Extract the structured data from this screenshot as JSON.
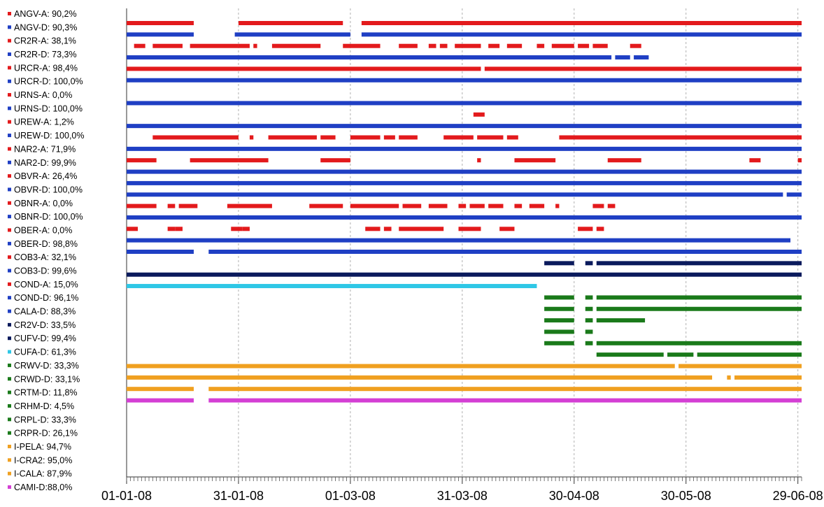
{
  "chart_data": {
    "type": "timeline",
    "x_range": [
      "2008-01-01",
      "2008-06-30"
    ],
    "x_ticks": [
      "01-01-08",
      "31-01-08",
      "01-03-08",
      "31-03-08",
      "30-04-08",
      "30-05-08",
      "29-06-08"
    ],
    "grid": "vertical dashed",
    "legend_position": "left",
    "legend": [
      {
        "label": "ANGV-A: 90,2%",
        "color": "#e31a1c"
      },
      {
        "label": "ANGV-D: 90,3%",
        "color": "#1f3fc4"
      },
      {
        "label": "CR2R-A: 38,1%",
        "color": "#e31a1c"
      },
      {
        "label": "CR2R-D: 73,3%",
        "color": "#1f3fc4"
      },
      {
        "label": "URCR-A: 98,4%",
        "color": "#e31a1c"
      },
      {
        "label": "URCR-D: 100,0%",
        "color": "#1f3fc4"
      },
      {
        "label": "URNS-A: 0,0%",
        "color": "#e31a1c"
      },
      {
        "label": "URNS-D: 100,0%",
        "color": "#1f3fc4"
      },
      {
        "label": "UREW-A: 1,2%",
        "color": "#e31a1c"
      },
      {
        "label": "UREW-D: 100,0%",
        "color": "#1f3fc4"
      },
      {
        "label": "NAR2-A: 71,9%",
        "color": "#e31a1c"
      },
      {
        "label": "NAR2-D: 99,9%",
        "color": "#1f3fc4"
      },
      {
        "label": "OBVR-A: 26,4%",
        "color": "#e31a1c"
      },
      {
        "label": "OBVR-D: 100,0%",
        "color": "#1f3fc4"
      },
      {
        "label": "OBNR-A: 0,0%",
        "color": "#e31a1c"
      },
      {
        "label": "OBNR-D: 100,0%",
        "color": "#1f3fc4"
      },
      {
        "label": "OBER-A: 0,0%",
        "color": "#e31a1c"
      },
      {
        "label": "OBER-D: 98,8%",
        "color": "#1f3fc4"
      },
      {
        "label": "COB3-A: 32,1%",
        "color": "#e31a1c"
      },
      {
        "label": "COB3-D: 99,6%",
        "color": "#1f3fc4"
      },
      {
        "label": "COND-A: 15,0%",
        "color": "#e31a1c"
      },
      {
        "label": "COND-D: 96,1%",
        "color": "#1f3fc4"
      },
      {
        "label": "CALA-D: 88,3%",
        "color": "#1f3fc4"
      },
      {
        "label": "CR2V-D: 33,5%",
        "color": "#0a1a5c"
      },
      {
        "label": "CUFV-D: 99,4%",
        "color": "#0a1a5c"
      },
      {
        "label": "CUFA-D: 61,3%",
        "color": "#2ec7e6"
      },
      {
        "label": "CRWV-D: 33,3%",
        "color": "#1a7a1a"
      },
      {
        "label": "CRWD-D: 33,1%",
        "color": "#1a7a1a"
      },
      {
        "label": "CRTM-D: 11,8%",
        "color": "#1a7a1a"
      },
      {
        "label": "CRHM-D: 4,5%",
        "color": "#1a7a1a"
      },
      {
        "label": "CRPL-D: 33,3%",
        "color": "#1a7a1a"
      },
      {
        "label": "CRPR-D: 26,1%",
        "color": "#1a7a1a"
      },
      {
        "label": "I-PELA: 94,7%",
        "color": "#f0a020"
      },
      {
        "label": "I-CRA2: 95,0%",
        "color": "#f0a020"
      },
      {
        "label": "I-CALA: 87,9%",
        "color": "#f0a020"
      },
      {
        "label": "CAMI-D:88,0%",
        "color": "#d43fd4"
      }
    ],
    "series": [
      {
        "color": "#e31a1c",
        "segments": [
          [
            "2008-01-01",
            "2008-01-19"
          ],
          [
            "2008-01-31",
            "2008-02-28"
          ],
          [
            "2008-03-04",
            "2008-06-30"
          ]
        ]
      },
      {
        "color": "#1f3fc4",
        "segments": [
          [
            "2008-01-01",
            "2008-01-19"
          ],
          [
            "2008-01-30",
            "2008-03-01"
          ],
          [
            "2008-03-04",
            "2008-06-30"
          ]
        ]
      },
      {
        "color": "#e31a1c",
        "segments": [
          [
            "2008-01-03",
            "2008-01-06"
          ],
          [
            "2008-01-08",
            "2008-01-16"
          ],
          [
            "2008-01-18",
            "2008-01-31"
          ],
          [
            "2008-01-31",
            "2008-02-03"
          ],
          [
            "2008-02-04",
            "2008-02-05"
          ],
          [
            "2008-02-09",
            "2008-02-22"
          ],
          [
            "2008-02-28",
            "2008-03-09"
          ],
          [
            "2008-03-14",
            "2008-03-19"
          ],
          [
            "2008-03-22",
            "2008-03-24"
          ],
          [
            "2008-03-25",
            "2008-03-27"
          ],
          [
            "2008-03-29",
            "2008-04-05"
          ],
          [
            "2008-04-07",
            "2008-04-10"
          ],
          [
            "2008-04-12",
            "2008-04-16"
          ],
          [
            "2008-04-20",
            "2008-04-22"
          ],
          [
            "2008-04-24",
            "2008-04-30"
          ],
          [
            "2008-05-01",
            "2008-05-04"
          ],
          [
            "2008-05-05",
            "2008-05-09"
          ],
          [
            "2008-05-15",
            "2008-05-18"
          ]
        ]
      },
      {
        "color": "#1f3fc4",
        "segments": [
          [
            "2008-01-01",
            "2008-05-10"
          ],
          [
            "2008-05-11",
            "2008-05-15"
          ],
          [
            "2008-05-16",
            "2008-05-20"
          ]
        ]
      },
      {
        "color": "#e31a1c",
        "segments": [
          [
            "2008-01-01",
            "2008-04-05"
          ],
          [
            "2008-04-06",
            "2008-06-30"
          ]
        ]
      },
      {
        "color": "#1f3fc4",
        "segments": [
          [
            "2008-01-01",
            "2008-06-30"
          ]
        ]
      },
      {
        "color": "#e31a1c",
        "segments": []
      },
      {
        "color": "#1f3fc4",
        "segments": [
          [
            "2008-01-01",
            "2008-06-30"
          ]
        ]
      },
      {
        "color": "#e31a1c",
        "segments": [
          [
            "2008-04-03",
            "2008-04-06"
          ]
        ]
      },
      {
        "color": "#1f3fc4",
        "segments": [
          [
            "2008-01-01",
            "2008-06-30"
          ]
        ]
      },
      {
        "color": "#e31a1c",
        "segments": [
          [
            "2008-01-08",
            "2008-01-31"
          ],
          [
            "2008-02-03",
            "2008-02-04"
          ],
          [
            "2008-02-08",
            "2008-02-21"
          ],
          [
            "2008-02-22",
            "2008-02-26"
          ],
          [
            "2008-03-01",
            "2008-03-09"
          ],
          [
            "2008-03-10",
            "2008-03-13"
          ],
          [
            "2008-03-14",
            "2008-03-19"
          ],
          [
            "2008-03-26",
            "2008-04-03"
          ],
          [
            "2008-04-04",
            "2008-04-11"
          ],
          [
            "2008-04-12",
            "2008-04-15"
          ],
          [
            "2008-04-26",
            "2008-06-30"
          ]
        ]
      },
      {
        "color": "#1f3fc4",
        "segments": [
          [
            "2008-01-01",
            "2008-06-30"
          ]
        ]
      },
      {
        "color": "#e31a1c",
        "segments": [
          [
            "2008-01-01",
            "2008-01-09"
          ],
          [
            "2008-01-18",
            "2008-01-31"
          ],
          [
            "2008-01-31",
            "2008-02-08"
          ],
          [
            "2008-02-22",
            "2008-03-01"
          ],
          [
            "2008-04-04",
            "2008-04-05"
          ],
          [
            "2008-04-14",
            "2008-04-25"
          ],
          [
            "2008-05-09",
            "2008-05-18"
          ],
          [
            "2008-06-16",
            "2008-06-19"
          ],
          [
            "2008-06-29",
            "2008-06-30"
          ]
        ]
      },
      {
        "color": "#1f3fc4",
        "segments": [
          [
            "2008-01-01",
            "2008-06-30"
          ]
        ]
      },
      {
        "color": "#1f3fc4",
        "segments": [
          [
            "2008-01-01",
            "2008-06-30"
          ]
        ]
      },
      {
        "color": "#1f3fc4",
        "segments": [
          [
            "2008-01-01",
            "2008-06-25"
          ],
          [
            "2008-06-26",
            "2008-06-30"
          ]
        ]
      },
      {
        "color": "#e31a1c",
        "segments": [
          [
            "2008-01-01",
            "2008-01-09"
          ],
          [
            "2008-01-12",
            "2008-01-14"
          ],
          [
            "2008-01-15",
            "2008-01-20"
          ],
          [
            "2008-01-28",
            "2008-02-09"
          ],
          [
            "2008-02-19",
            "2008-02-28"
          ],
          [
            "2008-03-01",
            "2008-03-14"
          ],
          [
            "2008-03-15",
            "2008-03-20"
          ],
          [
            "2008-03-22",
            "2008-03-27"
          ],
          [
            "2008-03-30",
            "2008-04-01"
          ],
          [
            "2008-04-02",
            "2008-04-06"
          ],
          [
            "2008-04-07",
            "2008-04-11"
          ],
          [
            "2008-04-14",
            "2008-04-16"
          ],
          [
            "2008-04-18",
            "2008-04-22"
          ],
          [
            "2008-04-25",
            "2008-04-26"
          ],
          [
            "2008-05-05",
            "2008-05-08"
          ],
          [
            "2008-05-09",
            "2008-05-11"
          ]
        ]
      },
      {
        "color": "#1f3fc4",
        "segments": [
          [
            "2008-01-01",
            "2008-06-30"
          ]
        ]
      },
      {
        "color": "#e31a1c",
        "segments": [
          [
            "2008-01-01",
            "2008-01-04"
          ],
          [
            "2008-01-12",
            "2008-01-14"
          ],
          [
            "2008-01-14",
            "2008-01-16"
          ],
          [
            "2008-01-29",
            "2008-02-01"
          ],
          [
            "2008-02-01",
            "2008-02-03"
          ],
          [
            "2008-03-05",
            "2008-03-09"
          ],
          [
            "2008-03-10",
            "2008-03-12"
          ],
          [
            "2008-03-14",
            "2008-03-26"
          ],
          [
            "2008-03-30",
            "2008-04-05"
          ],
          [
            "2008-04-10",
            "2008-04-14"
          ],
          [
            "2008-05-01",
            "2008-05-05"
          ],
          [
            "2008-05-06",
            "2008-05-08"
          ]
        ]
      },
      {
        "color": "#1f3fc4",
        "segments": [
          [
            "2008-01-01",
            "2008-06-27"
          ]
        ]
      },
      {
        "color": "#1f3fc4",
        "segments": [
          [
            "2008-01-01",
            "2008-01-19"
          ],
          [
            "2008-01-23",
            "2008-06-30"
          ]
        ]
      },
      {
        "color": "#0a1a5c",
        "segments": [
          [
            "2008-04-22",
            "2008-04-30"
          ],
          [
            "2008-05-03",
            "2008-05-05"
          ],
          [
            "2008-05-06",
            "2008-06-30"
          ]
        ]
      },
      {
        "color": "#0a1a5c",
        "segments": [
          [
            "2008-01-01",
            "2008-06-30"
          ]
        ]
      },
      {
        "color": "#2ec7e6",
        "segments": [
          [
            "2008-01-01",
            "2008-04-20"
          ]
        ]
      },
      {
        "color": "#1a7a1a",
        "segments": [
          [
            "2008-04-22",
            "2008-04-30"
          ],
          [
            "2008-05-03",
            "2008-05-05"
          ],
          [
            "2008-05-06",
            "2008-06-30"
          ]
        ]
      },
      {
        "color": "#1a7a1a",
        "segments": [
          [
            "2008-04-22",
            "2008-04-30"
          ],
          [
            "2008-05-03",
            "2008-05-05"
          ],
          [
            "2008-05-06",
            "2008-06-30"
          ]
        ]
      },
      {
        "color": "#1a7a1a",
        "segments": [
          [
            "2008-04-22",
            "2008-04-30"
          ],
          [
            "2008-05-03",
            "2008-05-05"
          ],
          [
            "2008-05-06",
            "2008-05-19"
          ]
        ]
      },
      {
        "color": "#1a7a1a",
        "segments": [
          [
            "2008-04-22",
            "2008-04-30"
          ],
          [
            "2008-05-03",
            "2008-05-05"
          ]
        ]
      },
      {
        "color": "#1a7a1a",
        "segments": [
          [
            "2008-04-22",
            "2008-04-30"
          ],
          [
            "2008-05-03",
            "2008-05-05"
          ],
          [
            "2008-05-06",
            "2008-06-30"
          ]
        ]
      },
      {
        "color": "#1a7a1a",
        "segments": [
          [
            "2008-05-06",
            "2008-05-24"
          ],
          [
            "2008-05-25",
            "2008-06-01"
          ],
          [
            "2008-06-02",
            "2008-06-30"
          ]
        ]
      },
      {
        "color": "#f0a020",
        "segments": [
          [
            "2008-01-01",
            "2008-05-27"
          ],
          [
            "2008-05-28",
            "2008-06-30"
          ]
        ]
      },
      {
        "color": "#f0a020",
        "segments": [
          [
            "2008-01-01",
            "2008-06-06"
          ],
          [
            "2008-06-10",
            "2008-06-11"
          ],
          [
            "2008-06-12",
            "2008-06-30"
          ]
        ]
      },
      {
        "color": "#f0a020",
        "segments": [
          [
            "2008-01-01",
            "2008-01-19"
          ],
          [
            "2008-01-23",
            "2008-06-30"
          ]
        ]
      },
      {
        "color": "#d43fd4",
        "segments": [
          [
            "2008-01-01",
            "2008-01-19"
          ],
          [
            "2008-01-23",
            "2008-06-30"
          ]
        ]
      }
    ]
  }
}
